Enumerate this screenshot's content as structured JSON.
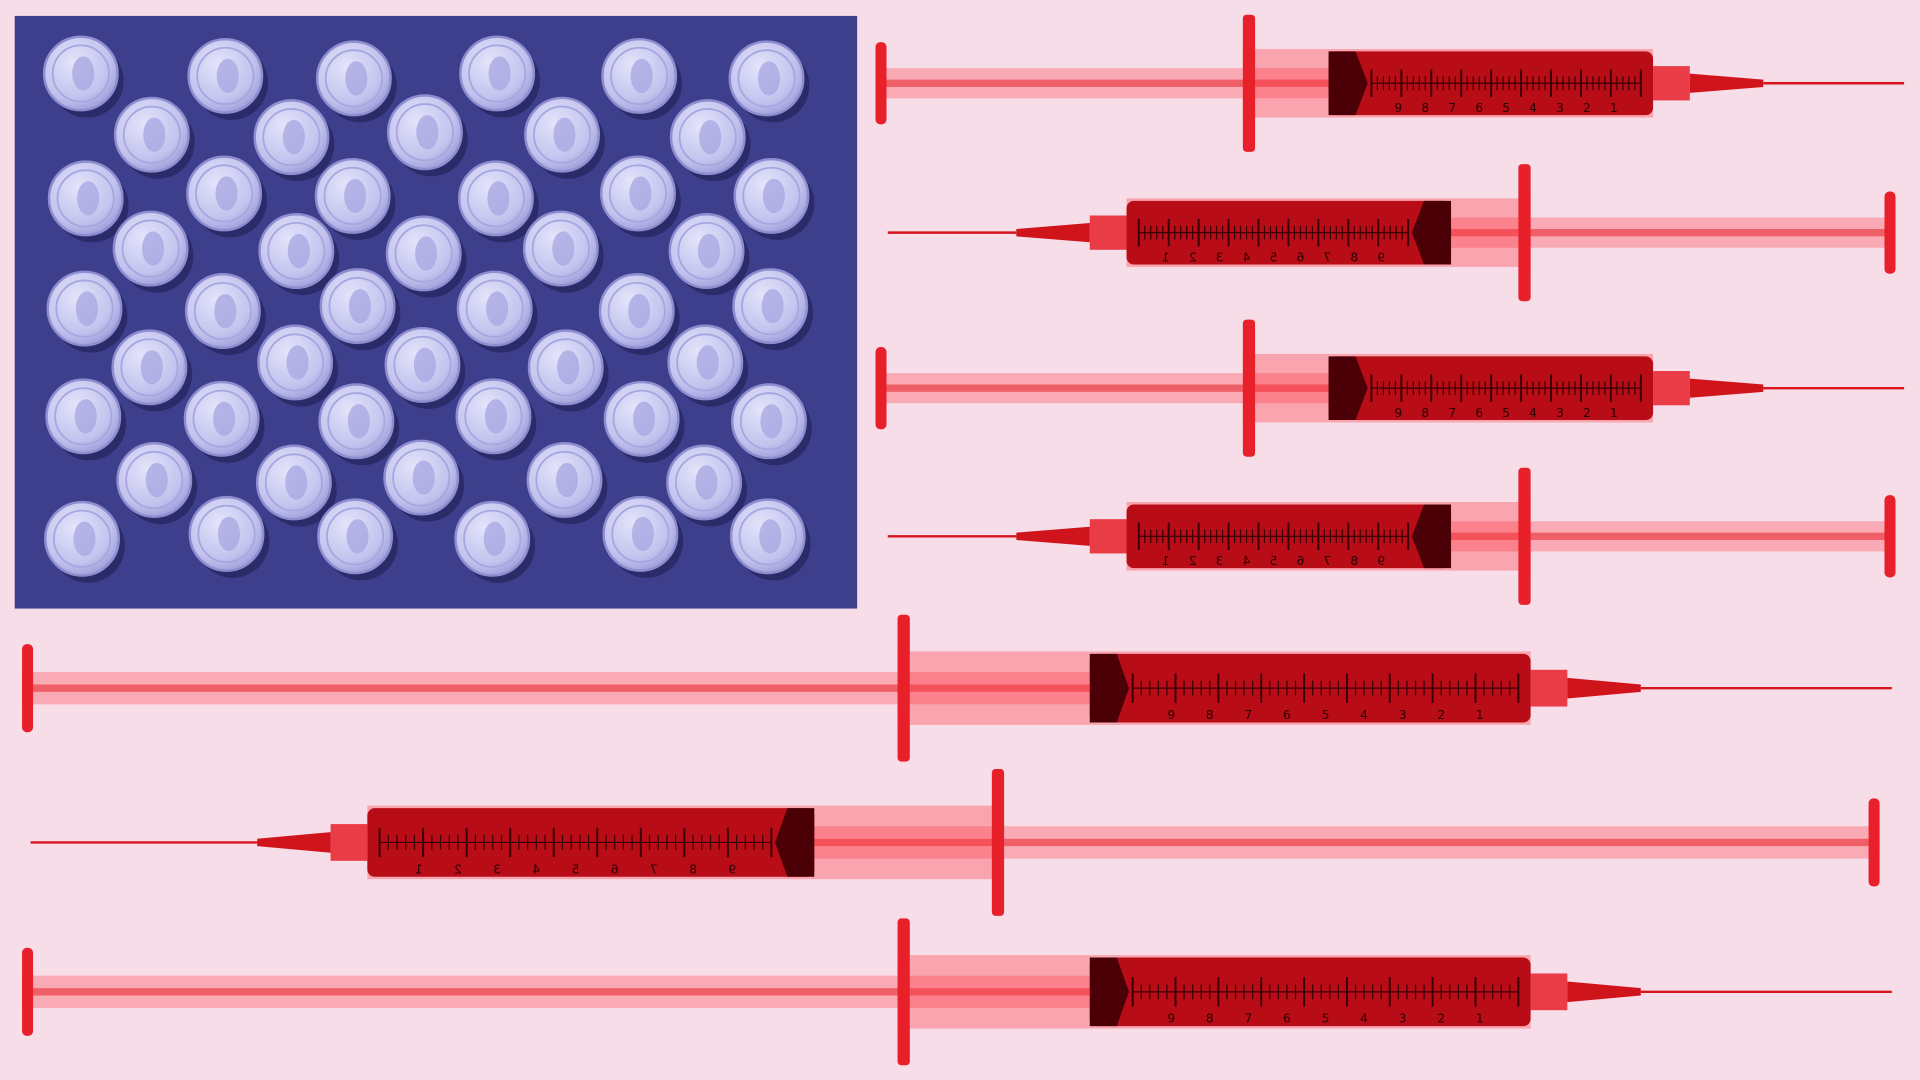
{
  "artwork": {
    "subject": "flag",
    "colors": {
      "background": "#f6dde8",
      "canton": "#3d3f8c",
      "coin": "#c9c9f2",
      "coin_shadow": "#23245a",
      "syringe_red": "#e8202a",
      "liquid": "#b80d16",
      "stopper": "#4a0006"
    },
    "canton": {
      "coin_type": "quarter",
      "coin_count": 50,
      "rows_of_six": 5,
      "rows_of_five": 4
    },
    "stripes": {
      "syringe_count": 7
    },
    "syringe_scale_labels": [
      "1",
      "2",
      "3",
      "4",
      "5",
      "6",
      "7",
      "8",
      "9"
    ]
  }
}
